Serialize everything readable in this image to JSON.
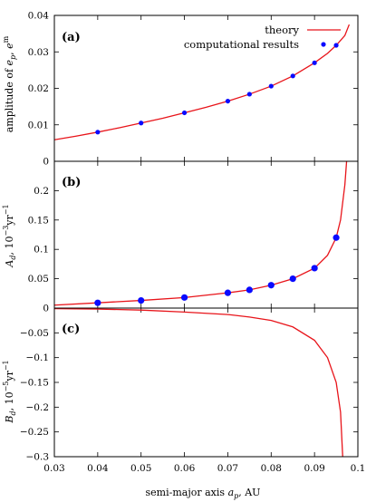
{
  "chart_data": [
    {
      "type": "line",
      "panel_label": "(a)",
      "ylabel": "amplitude of e_p, e_p^m",
      "ylabel_parts": {
        "prefix": "amplitude of ",
        "e": "e",
        "sub_p": "p",
        "comma": ", ",
        "sup_m": "m"
      },
      "xlim": [
        0.03,
        0.1
      ],
      "ylim": [
        0,
        0.04
      ],
      "yticks": [
        "0",
        "0.01",
        "0.02",
        "0.03",
        "0.04"
      ],
      "legend": {
        "position": "top-right",
        "entries": [
          "theory",
          "computational results"
        ]
      },
      "series": [
        {
          "name": "theory",
          "kind": "line",
          "color": "#e8141a",
          "x": [
            0.03,
            0.035,
            0.04,
            0.045,
            0.05,
            0.055,
            0.06,
            0.065,
            0.07,
            0.075,
            0.08,
            0.085,
            0.09,
            0.093,
            0.095,
            0.097,
            0.098
          ],
          "y": [
            0.0059,
            0.0069,
            0.008,
            0.0092,
            0.0105,
            0.0118,
            0.0133,
            0.0148,
            0.0165,
            0.0184,
            0.0206,
            0.0234,
            0.027,
            0.0296,
            0.0318,
            0.0345,
            0.0375
          ]
        },
        {
          "name": "computational results",
          "kind": "scatter",
          "color": "#0a0aff",
          "x": [
            0.04,
            0.05,
            0.06,
            0.07,
            0.075,
            0.08,
            0.085,
            0.09,
            0.095
          ],
          "y": [
            0.008,
            0.0105,
            0.0133,
            0.0165,
            0.0184,
            0.0206,
            0.0234,
            0.027,
            0.0318
          ]
        }
      ]
    },
    {
      "type": "line",
      "panel_label": "(b)",
      "ylabel": "A_d, 10^-3 yr^-1",
      "ylabel_parts": {
        "A": "A",
        "sub_d": "d",
        "rest": ", 10",
        "exp": "−3",
        "unit": "yr",
        "unit_exp": "−1"
      },
      "xlim": [
        0.03,
        0.1
      ],
      "ylim": [
        0,
        0.25
      ],
      "yticks": [
        "0",
        "0.05",
        "0.1",
        "0.15",
        "0.2"
      ],
      "series": [
        {
          "name": "theory",
          "kind": "line",
          "color": "#e8141a",
          "x": [
            0.03,
            0.04,
            0.05,
            0.06,
            0.07,
            0.075,
            0.08,
            0.085,
            0.09,
            0.093,
            0.095,
            0.096,
            0.097,
            0.0975
          ],
          "y": [
            0.005,
            0.009,
            0.013,
            0.018,
            0.026,
            0.031,
            0.039,
            0.05,
            0.068,
            0.09,
            0.12,
            0.15,
            0.21,
            0.26
          ]
        },
        {
          "name": "computational results",
          "kind": "scatter",
          "color": "#0a0aff",
          "x": [
            0.04,
            0.05,
            0.06,
            0.07,
            0.075,
            0.08,
            0.085,
            0.09,
            0.095
          ],
          "y": [
            0.009,
            0.013,
            0.018,
            0.026,
            0.031,
            0.039,
            0.05,
            0.068,
            0.12
          ]
        }
      ]
    },
    {
      "type": "line",
      "panel_label": "(c)",
      "ylabel": "B_d, 10^-5 yr^-1",
      "ylabel_parts": {
        "B": "B",
        "sub_d": "d",
        "rest": ", 10",
        "exp": "−5",
        "unit": "yr",
        "unit_exp": "−1"
      },
      "xlabel": "semi-major axis a_p, AU",
      "xlabel_parts": {
        "prefix": "semi-major axis ",
        "a": "a",
        "sub_p": "p",
        "suffix": ", AU"
      },
      "xlim": [
        0.03,
        0.1
      ],
      "ylim": [
        -0.3,
        0
      ],
      "yticks": [
        "−0.05",
        "−0.1",
        "−0.15",
        "−0.2",
        "−0.25",
        "−0.3"
      ],
      "xticks": [
        "0.03",
        "0.04",
        "0.05",
        "0.06",
        "0.07",
        "0.08",
        "0.09",
        "0.1"
      ],
      "series": [
        {
          "name": "theory",
          "kind": "line",
          "color": "#e8141a",
          "x": [
            0.03,
            0.04,
            0.05,
            0.06,
            0.07,
            0.075,
            0.08,
            0.085,
            0.09,
            0.093,
            0.095,
            0.096,
            0.0965
          ],
          "y": [
            -0.001,
            -0.002,
            -0.004,
            -0.008,
            -0.013,
            -0.018,
            -0.025,
            -0.038,
            -0.065,
            -0.1,
            -0.15,
            -0.21,
            -0.3
          ]
        }
      ]
    }
  ]
}
